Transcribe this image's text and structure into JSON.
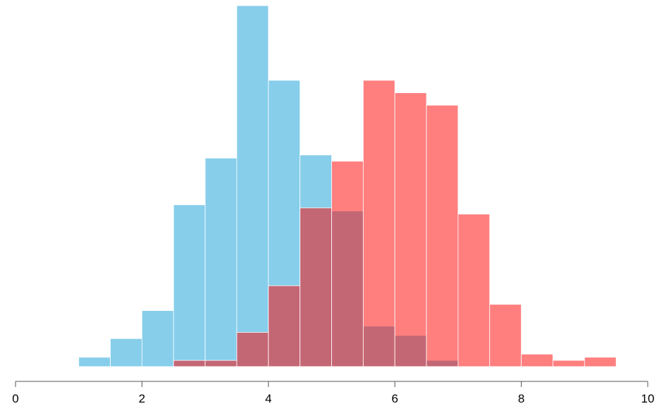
{
  "chart_data": {
    "type": "bar",
    "title": "",
    "xlabel": "",
    "ylabel": "",
    "bin_width": 0.5,
    "xlim": [
      0,
      10
    ],
    "ylim": [
      0,
      58
    ],
    "x_ticks": [
      0,
      2,
      4,
      6,
      8,
      10
    ],
    "grid": false,
    "legend": "none",
    "series": [
      {
        "color": "#87CEEB",
        "bins": [
          {
            "x0": 1.0,
            "count": 1.5
          },
          {
            "x0": 1.5,
            "count": 4.5
          },
          {
            "x0": 2.0,
            "count": 9
          },
          {
            "x0": 2.5,
            "count": 26
          },
          {
            "x0": 3.0,
            "count": 33.5
          },
          {
            "x0": 3.5,
            "count": 58
          },
          {
            "x0": 4.0,
            "count": 46
          },
          {
            "x0": 4.5,
            "count": 34
          },
          {
            "x0": 5.0,
            "count": 25
          },
          {
            "x0": 5.5,
            "count": 6.5
          },
          {
            "x0": 6.0,
            "count": 5
          },
          {
            "x0": 6.5,
            "count": 1
          }
        ]
      },
      {
        "color": "#FF0000",
        "opacity": 0.5,
        "bins": [
          {
            "x0": 2.5,
            "count": 1
          },
          {
            "x0": 3.0,
            "count": 1
          },
          {
            "x0": 3.5,
            "count": 5.5
          },
          {
            "x0": 4.0,
            "count": 13
          },
          {
            "x0": 4.5,
            "count": 25.5
          },
          {
            "x0": 5.0,
            "count": 33
          },
          {
            "x0": 5.5,
            "count": 46
          },
          {
            "x0": 6.0,
            "count": 44
          },
          {
            "x0": 6.5,
            "count": 42
          },
          {
            "x0": 7.0,
            "count": 24.5
          },
          {
            "x0": 7.5,
            "count": 10
          },
          {
            "x0": 8.0,
            "count": 2
          },
          {
            "x0": 8.5,
            "count": 1
          },
          {
            "x0": 9.0,
            "count": 1.5
          }
        ]
      }
    ]
  }
}
